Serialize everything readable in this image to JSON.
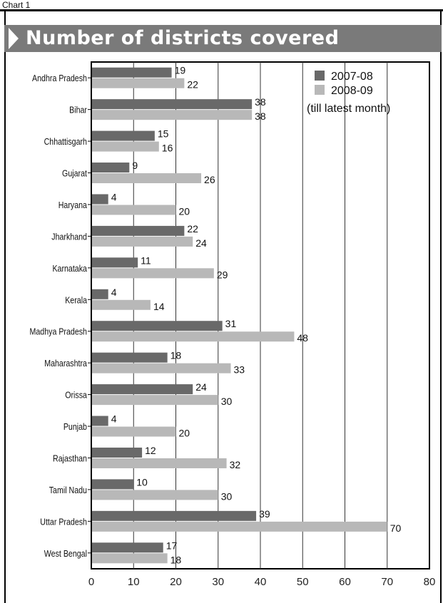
{
  "header": {
    "chart_number": "Chart 1"
  },
  "colors": {
    "series_2007": "#696969",
    "series_2008": "#b8b8b8",
    "title_bar": "#7a7a7a"
  },
  "chart_data": {
    "type": "bar",
    "orientation": "horizontal",
    "title": "Number of districts covered",
    "xlabel": "",
    "ylabel": "",
    "xlim": [
      0,
      80
    ],
    "x_ticks": [
      "0",
      "10",
      "20",
      "30",
      "40",
      "50",
      "60",
      "70",
      "80"
    ],
    "grid": "vertical gridlines",
    "legend_position": "top-right",
    "categories": [
      "Andhra Pradesh",
      "Bihar",
      "Chhattisgarh",
      "Gujarat",
      "Haryana",
      "Jharkhand",
      "Karnataka",
      "Kerala",
      "Madhya Pradesh",
      "Maharashtra",
      "Orissa",
      "Punjab",
      "Rajasthan",
      "Tamil Nadu",
      "Uttar Pradesh",
      "West Bengal"
    ],
    "series": [
      {
        "name": "2007-08",
        "values": [
          19,
          38,
          15,
          9,
          4,
          22,
          11,
          4,
          31,
          18,
          24,
          4,
          12,
          10,
          39,
          17
        ]
      },
      {
        "name": "2008-09",
        "values": [
          22,
          38,
          16,
          26,
          20,
          24,
          29,
          14,
          48,
          33,
          30,
          20,
          32,
          30,
          70,
          18
        ]
      }
    ],
    "legend_note": "(till latest month)"
  }
}
